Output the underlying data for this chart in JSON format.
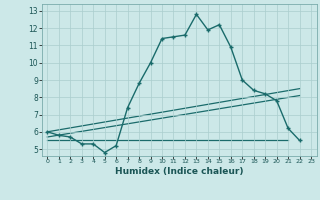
{
  "xlabel": "Humidex (Indice chaleur)",
  "bg_color": "#cce8e8",
  "grid_color": "#aacece",
  "line_color": "#1a6b6b",
  "xlim": [
    -0.5,
    23.5
  ],
  "ylim": [
    4.6,
    13.4
  ],
  "xticks": [
    0,
    1,
    2,
    3,
    4,
    5,
    6,
    7,
    8,
    9,
    10,
    11,
    12,
    13,
    14,
    15,
    16,
    17,
    18,
    19,
    20,
    21,
    22,
    23
  ],
  "yticks": [
    5,
    6,
    7,
    8,
    9,
    10,
    11,
    12,
    13
  ],
  "curve1_x": [
    0,
    1,
    2,
    3,
    4,
    5,
    6,
    7,
    8,
    9,
    10,
    11,
    12,
    13,
    14,
    15,
    16,
    17,
    18,
    19,
    20,
    21,
    22
  ],
  "curve1_y": [
    6.0,
    5.8,
    5.7,
    5.3,
    5.3,
    4.8,
    5.2,
    7.4,
    8.8,
    10.0,
    11.4,
    11.5,
    11.6,
    12.8,
    11.9,
    12.2,
    10.9,
    9.0,
    8.4,
    8.2,
    7.8,
    6.2,
    5.5
  ],
  "line1_x": [
    0,
    22
  ],
  "line1_y": [
    6.0,
    8.5
  ],
  "line2_x": [
    0,
    22
  ],
  "line2_y": [
    5.7,
    8.1
  ],
  "line3_x": [
    0,
    21
  ],
  "line3_y": [
    5.5,
    5.5
  ]
}
